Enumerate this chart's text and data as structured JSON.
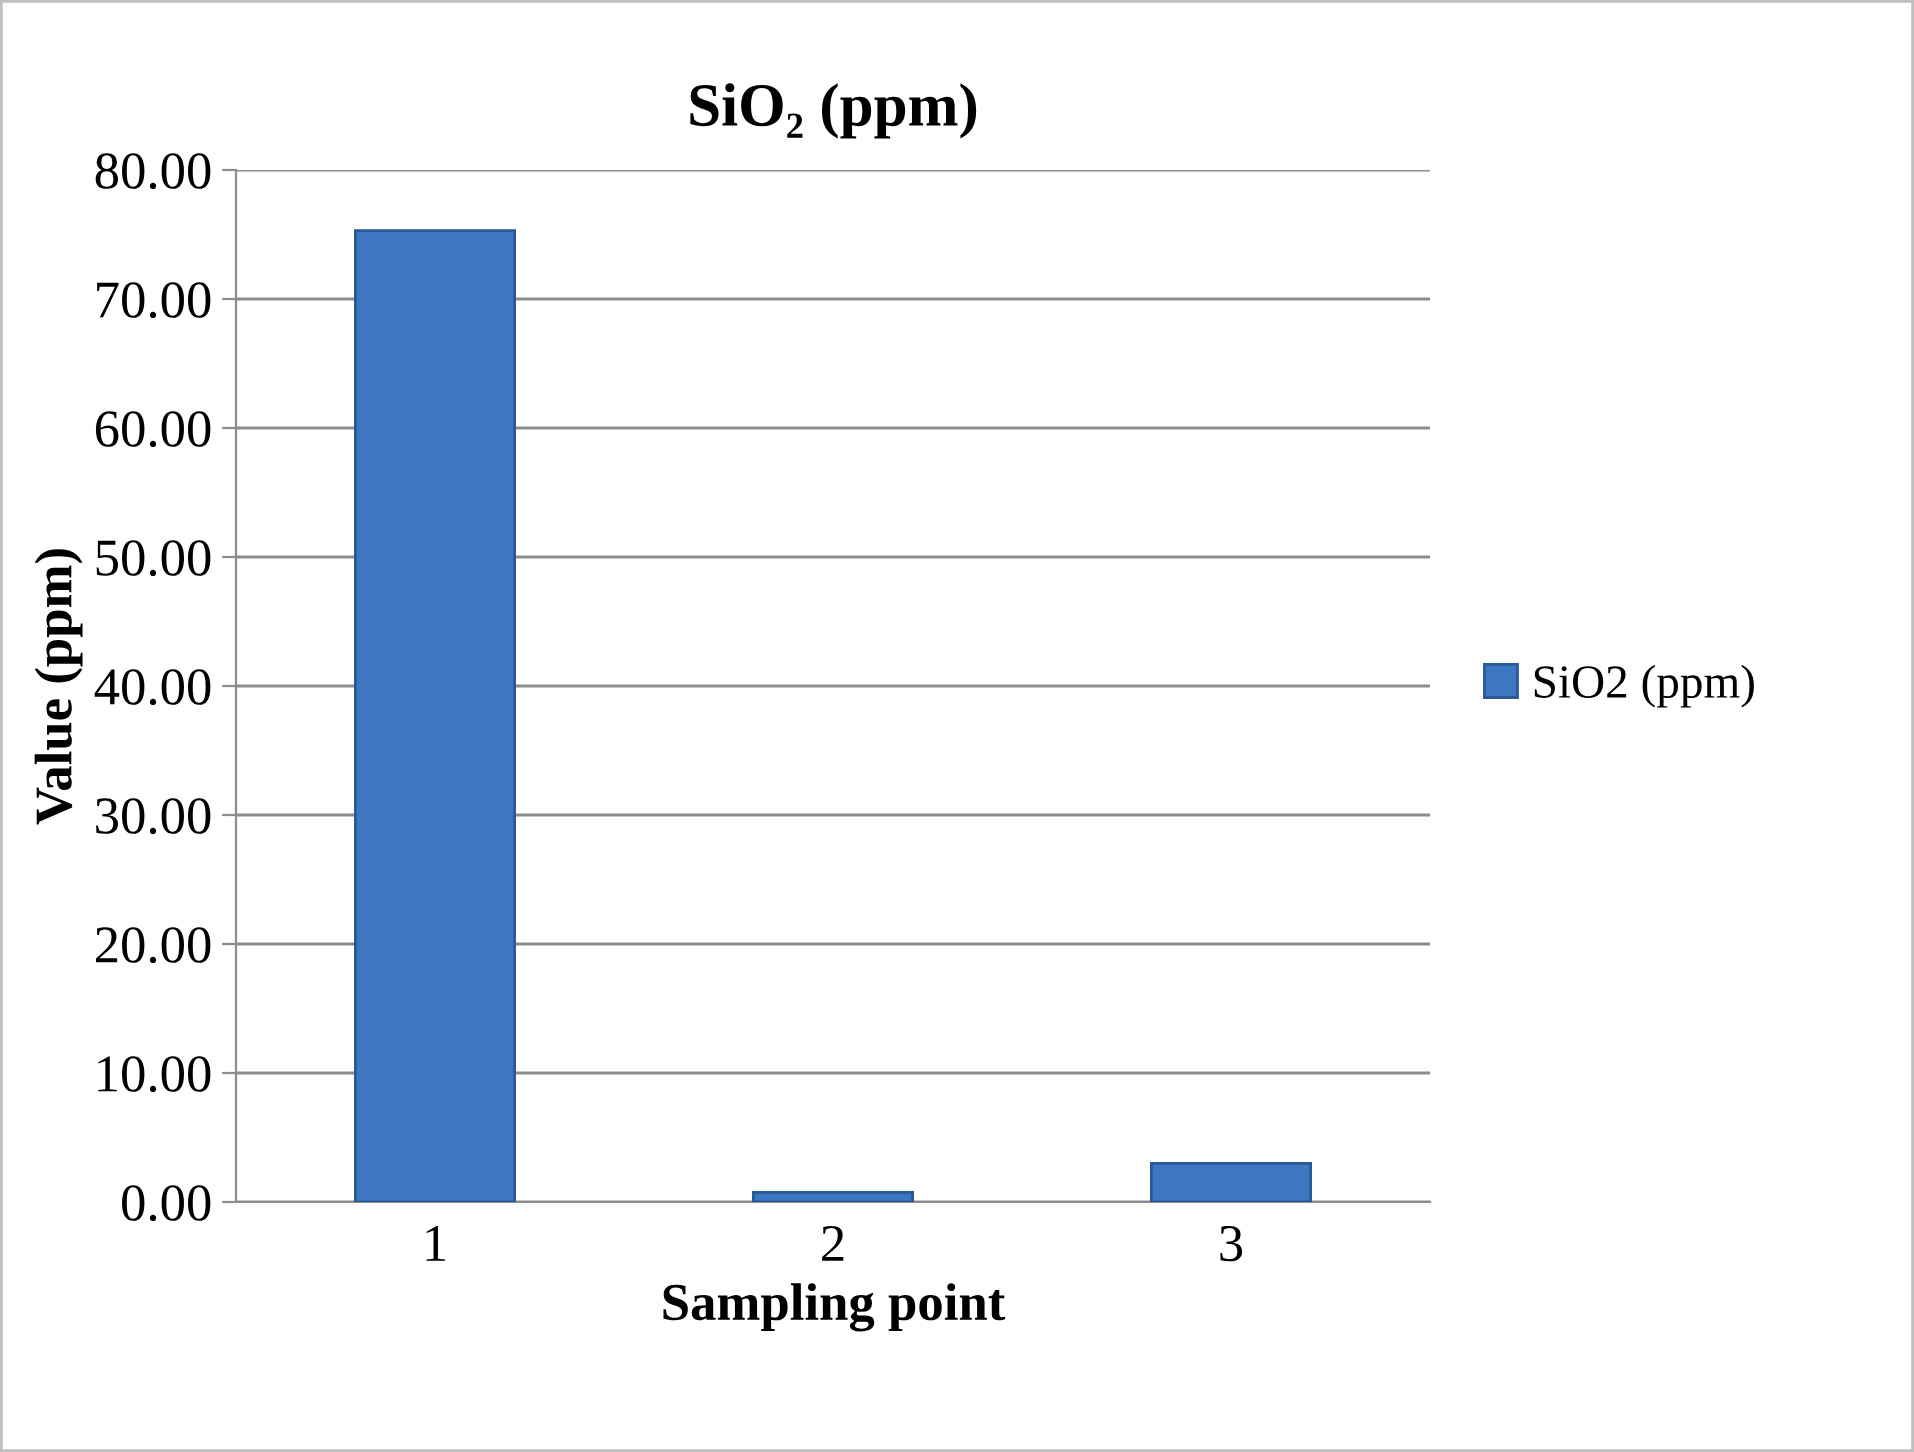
{
  "chart_data": {
    "type": "bar",
    "title": "SiO₂ (ppm)",
    "xlabel": "Sampling point",
    "ylabel": "Value (ppm)",
    "categories": [
      "1",
      "2",
      "3"
    ],
    "series": [
      {
        "name": "SiO2 (ppm)",
        "color": "#3d77c2",
        "values": [
          75.3,
          0.75,
          3.0
        ]
      }
    ],
    "ylim": [
      0,
      80
    ],
    "yticks": [
      {
        "value": 0,
        "label": "0.00"
      },
      {
        "value": 10,
        "label": "10.00"
      },
      {
        "value": 20,
        "label": "20.00"
      },
      {
        "value": 30,
        "label": "30.00"
      },
      {
        "value": 40,
        "label": "40.00"
      },
      {
        "value": 50,
        "label": "50.00"
      },
      {
        "value": 60,
        "label": "60.00"
      },
      {
        "value": 70,
        "label": "70.00"
      },
      {
        "value": 80,
        "label": "80.00"
      }
    ],
    "grid": "y",
    "legend": "right"
  }
}
